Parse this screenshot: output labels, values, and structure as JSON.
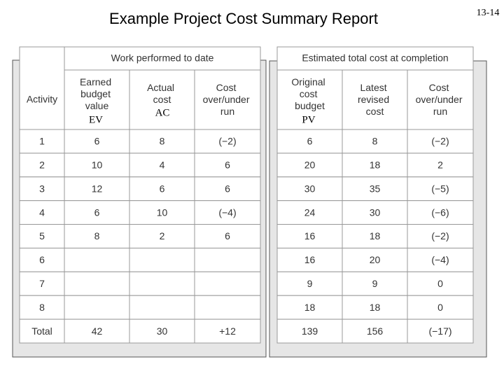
{
  "title": "Example Project Cost Summary Report",
  "page_number": "13-14",
  "left_table": {
    "activity_header": "Activity",
    "group_header": "Work performed to date",
    "columns": [
      "Earned budget value",
      "Actual cost",
      "Cost over/under run"
    ],
    "rows": [
      [
        "1",
        "6",
        "8",
        "(−2)"
      ],
      [
        "2",
        "10",
        "4",
        "6"
      ],
      [
        "3",
        "12",
        "6",
        "6"
      ],
      [
        "4",
        "6",
        "10",
        "(−4)"
      ],
      [
        "5",
        "8",
        "2",
        "6"
      ],
      [
        "6",
        null,
        null,
        null
      ],
      [
        "7",
        null,
        null,
        null
      ],
      [
        "8",
        null,
        null,
        null
      ],
      [
        "Total",
        "42",
        "30",
        "+12"
      ]
    ]
  },
  "right_table": {
    "group_header": "Estimated total cost at completion",
    "columns": [
      "Original cost budget",
      "Latest revised cost",
      "Cost over/under run"
    ],
    "rows": [
      [
        "6",
        "8",
        "(−2)"
      ],
      [
        "20",
        "18",
        "2"
      ],
      [
        "30",
        "35",
        "(−5)"
      ],
      [
        "24",
        "30",
        "(−6)"
      ],
      [
        "16",
        "18",
        "(−2)"
      ],
      [
        "16",
        "20",
        "(−4)"
      ],
      [
        "9",
        "9",
        "0"
      ],
      [
        "18",
        "18",
        "0"
      ],
      [
        "139",
        "156",
        "(−17)"
      ]
    ]
  },
  "overlay_labels": [
    "EV",
    "AC",
    "PV"
  ]
}
